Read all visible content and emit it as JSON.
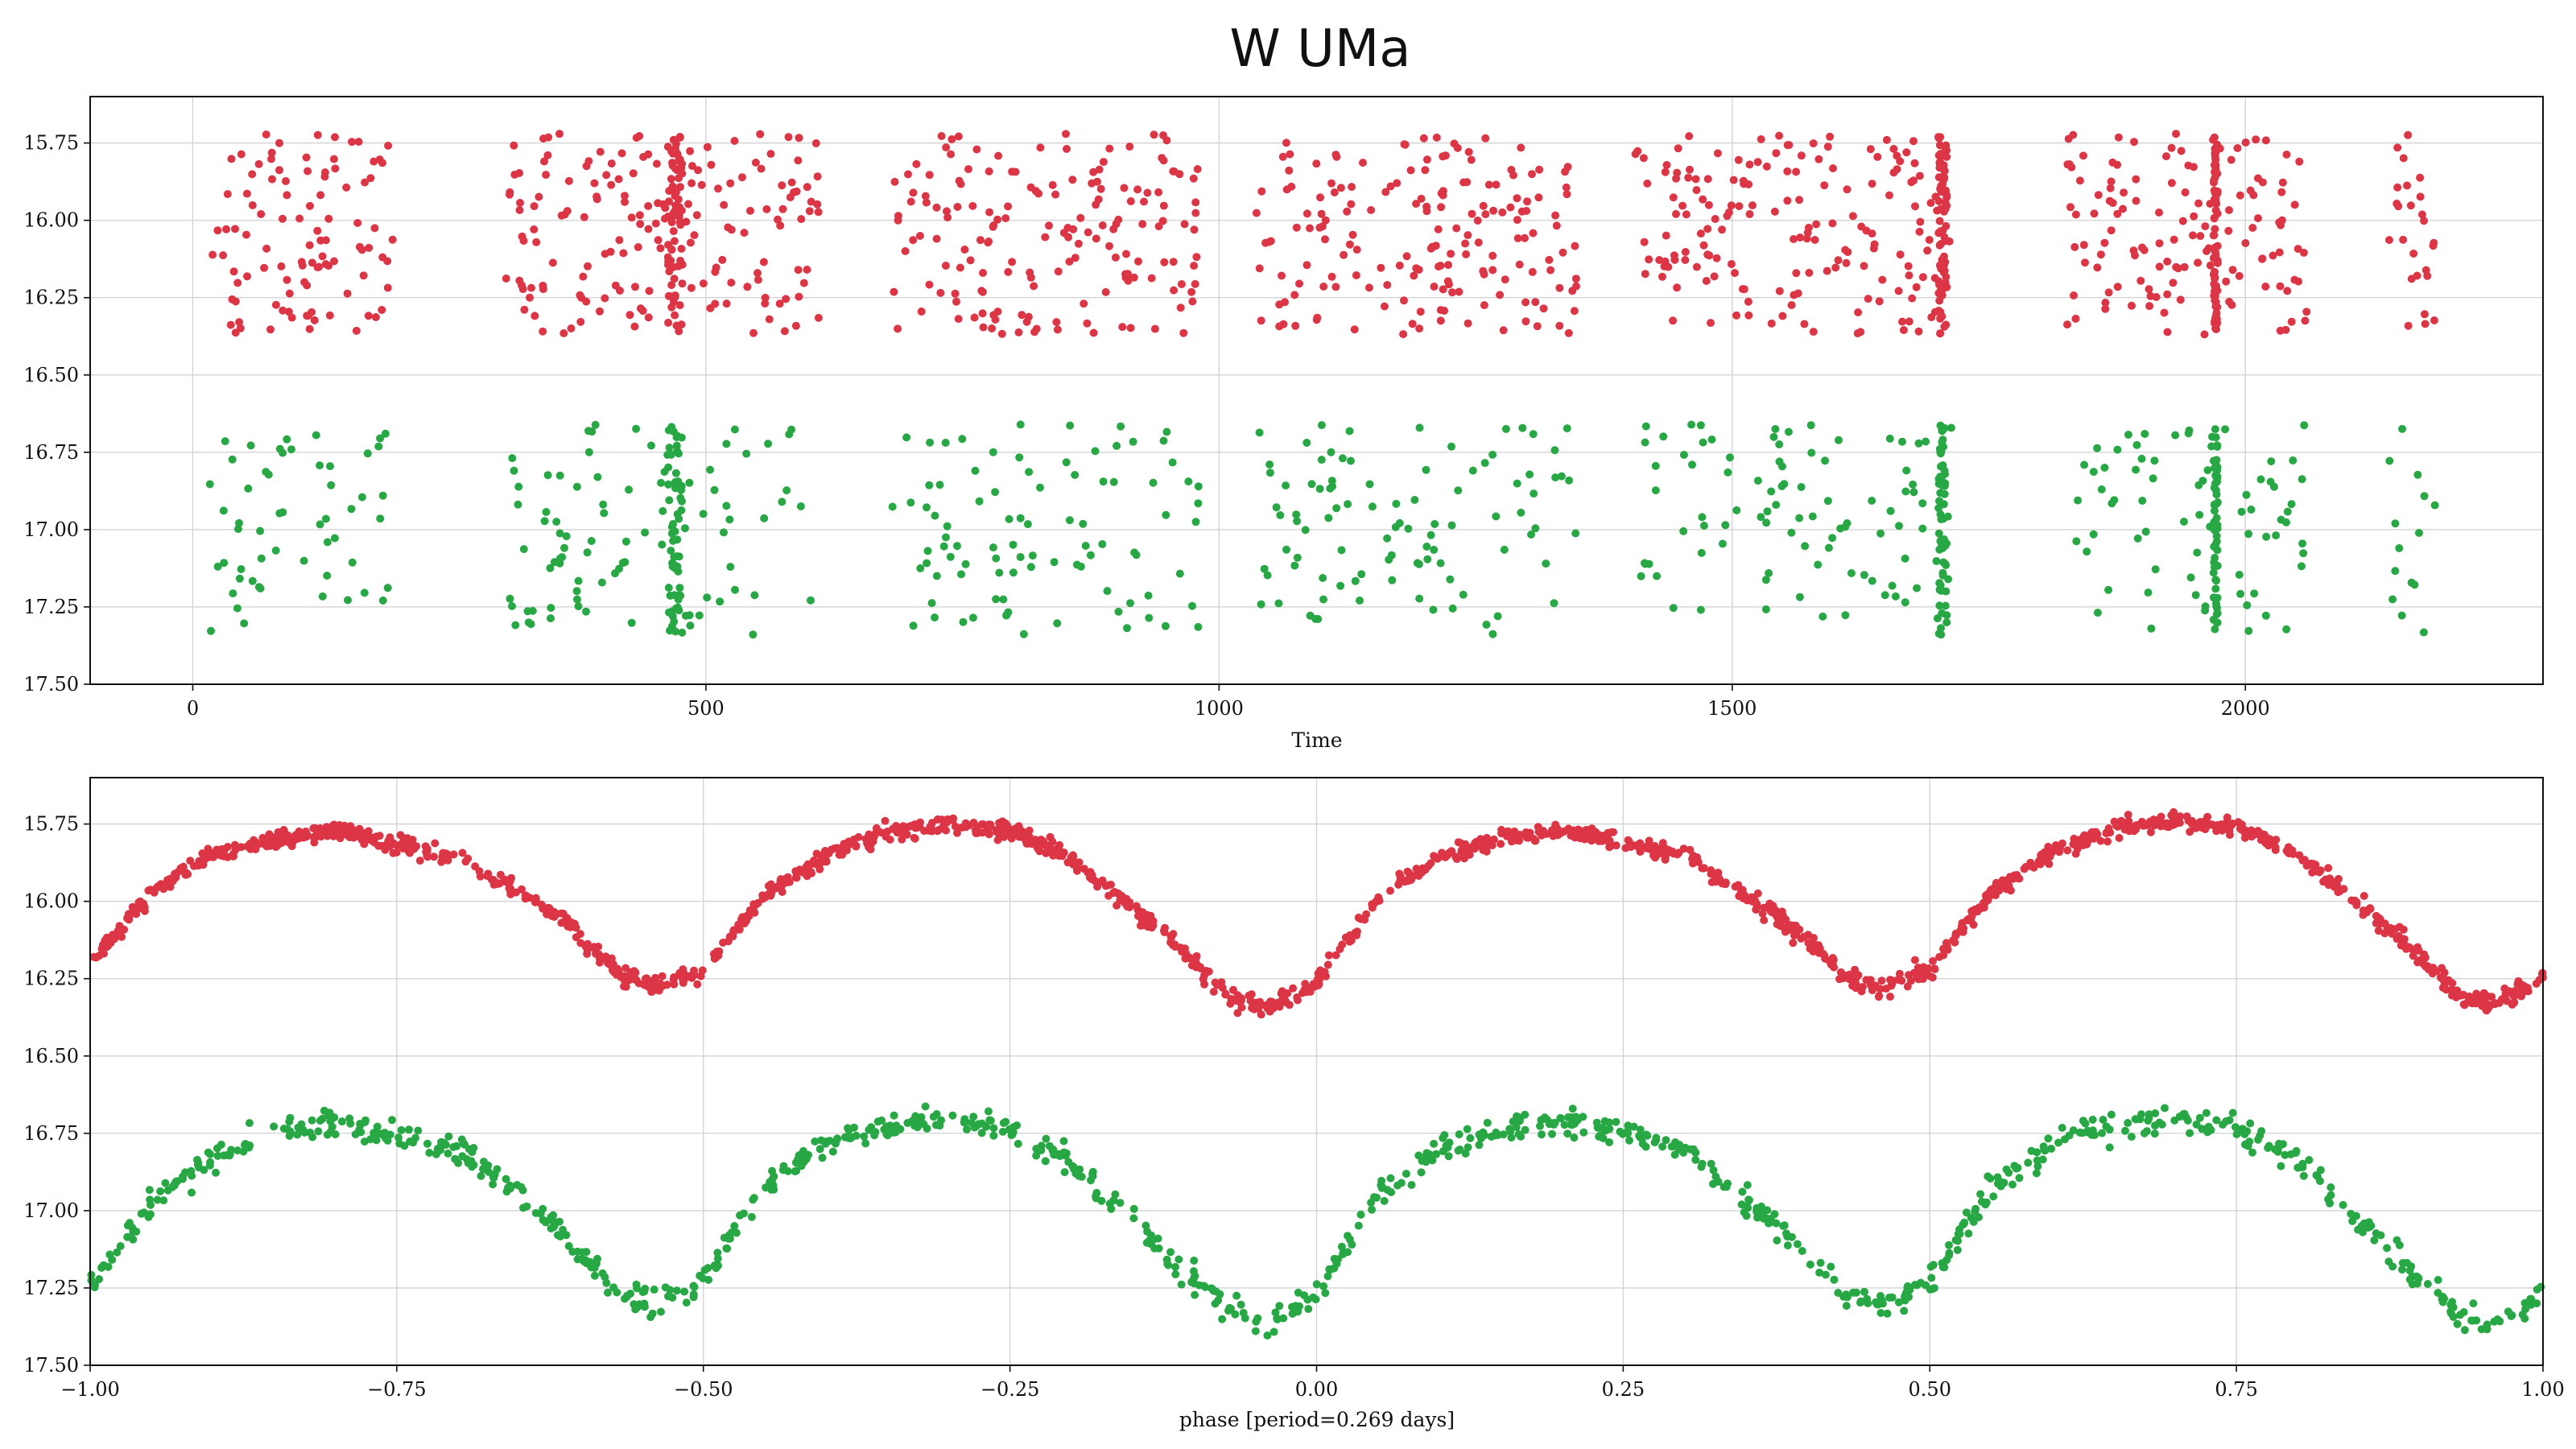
{
  "figure": {
    "title": "W UMa",
    "colors": {
      "band_r": "#dc3545",
      "band_g": "#28a745"
    }
  },
  "chart_data": [
    {
      "type": "scatter",
      "name": "raw-light-curve",
      "title": "",
      "xlabel": "Time",
      "ylabel": "",
      "xlim": [
        -100,
        2290
      ],
      "ylim": [
        17.5,
        15.6
      ],
      "y_inverted": true,
      "grid": true,
      "xticks": [
        0,
        500,
        1000,
        1500,
        2000
      ],
      "xtick_labels": [
        "0",
        "500",
        "1000",
        "1500",
        "2000"
      ],
      "yticks": [
        15.75,
        16.0,
        16.25,
        16.5,
        16.75,
        17.0,
        17.25,
        17.5
      ],
      "ytick_labels": [
        "15.75",
        "16.00",
        "16.25",
        "16.50",
        "16.75",
        "17.00",
        "17.25",
        "17.50"
      ],
      "observing_seasons": [
        {
          "start": 15,
          "end": 195,
          "dense": []
        },
        {
          "start": 305,
          "end": 610,
          "dense": [
            {
              "t": 470,
              "w": 14
            }
          ]
        },
        {
          "start": 680,
          "end": 980,
          "dense": []
        },
        {
          "start": 1035,
          "end": 1350,
          "dense": []
        },
        {
          "start": 1405,
          "end": 1715,
          "dense": [
            {
              "t": 1705,
              "w": 8
            }
          ]
        },
        {
          "start": 1825,
          "end": 2060,
          "dense": [
            {
              "t": 1971,
              "w": 4
            }
          ]
        },
        {
          "start": 2140,
          "end": 2185,
          "dense": []
        }
      ],
      "series": [
        {
          "band": "r",
          "color": "#dc3545",
          "mag_bright": 15.72,
          "mag_faint": 16.37
        },
        {
          "band": "g",
          "color": "#28a745",
          "mag_bright": 16.66,
          "mag_faint": 17.34
        }
      ]
    },
    {
      "type": "scatter",
      "name": "phase-folded-light-curve",
      "title": "",
      "xlabel": "phase [period=0.269 days]",
      "ylabel": "",
      "xlim": [
        -1.0,
        1.0
      ],
      "ylim": [
        17.5,
        15.6
      ],
      "y_inverted": true,
      "grid": true,
      "period_days": 0.269,
      "xticks": [
        -1.0,
        -0.75,
        -0.5,
        -0.25,
        0.0,
        0.25,
        0.5,
        0.75,
        1.0
      ],
      "xtick_labels": [
        "−1.00",
        "−0.75",
        "−0.50",
        "−0.25",
        "0.00",
        "0.25",
        "0.50",
        "0.75",
        "1.00"
      ],
      "yticks": [
        15.75,
        16.0,
        16.25,
        16.5,
        16.75,
        17.0,
        17.25,
        17.5
      ],
      "ytick_labels": [
        "15.75",
        "16.00",
        "16.25",
        "16.50",
        "16.75",
        "17.00",
        "17.25",
        "17.50"
      ],
      "series": [
        {
          "band": "r",
          "color": "#dc3545",
          "curve_phase": [
            -1.0,
            -0.95,
            -0.9,
            -0.85,
            -0.8,
            -0.7,
            -0.62,
            -0.57,
            -0.54,
            -0.5,
            -0.45,
            -0.4,
            -0.35,
            -0.3,
            -0.25,
            -0.2,
            -0.12,
            -0.07,
            -0.04,
            0.0,
            0.05,
            0.1,
            0.15,
            0.2,
            0.3,
            0.38,
            0.43,
            0.46,
            0.5,
            0.55,
            0.6,
            0.65,
            0.7,
            0.75,
            0.8,
            0.88,
            0.93,
            0.96,
            1.0
          ],
          "curve_mag": [
            16.2,
            15.97,
            15.85,
            15.8,
            15.77,
            15.86,
            16.04,
            16.23,
            16.28,
            16.22,
            15.98,
            15.85,
            15.78,
            15.75,
            15.77,
            15.86,
            16.12,
            16.32,
            16.34,
            16.27,
            15.99,
            15.86,
            15.8,
            15.77,
            15.85,
            16.06,
            16.24,
            16.28,
            16.22,
            15.97,
            15.84,
            15.77,
            15.74,
            15.76,
            15.85,
            16.1,
            16.3,
            16.33,
            16.25
          ],
          "scatter_mag": 0.014,
          "n_points": 1700
        },
        {
          "band": "g",
          "color": "#28a745",
          "curve_phase": [
            -1.0,
            -0.95,
            -0.9,
            -0.85,
            -0.8,
            -0.7,
            -0.62,
            -0.57,
            -0.54,
            -0.5,
            -0.45,
            -0.4,
            -0.35,
            -0.3,
            -0.25,
            -0.2,
            -0.12,
            -0.07,
            -0.04,
            0.0,
            0.05,
            0.1,
            0.15,
            0.2,
            0.3,
            0.38,
            0.43,
            0.46,
            0.5,
            0.55,
            0.6,
            0.65,
            0.7,
            0.75,
            0.8,
            0.88,
            0.93,
            0.96,
            1.0
          ],
          "curve_mag": [
            17.25,
            16.98,
            16.82,
            16.75,
            16.72,
            16.8,
            17.05,
            17.26,
            17.31,
            17.22,
            16.93,
            16.78,
            16.73,
            16.7,
            16.73,
            16.84,
            17.15,
            17.33,
            17.37,
            17.27,
            16.95,
            16.8,
            16.74,
            16.71,
            16.8,
            17.07,
            17.27,
            17.31,
            17.22,
            16.93,
            16.78,
            16.73,
            16.7,
            16.73,
            16.84,
            17.15,
            17.33,
            17.37,
            17.28
          ],
          "scatter_mag": 0.022,
          "n_points": 1000
        }
      ]
    }
  ]
}
